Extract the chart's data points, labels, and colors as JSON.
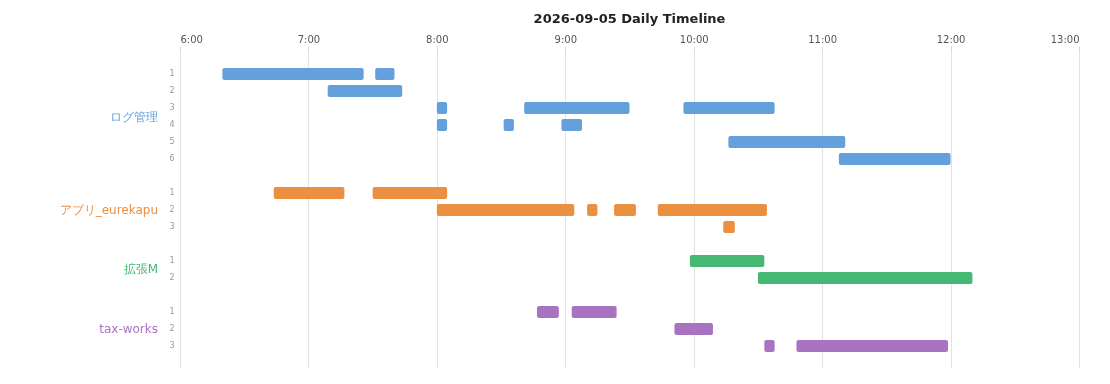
{
  "chart_data": {
    "type": "bar",
    "orientation": "horizontal",
    "title": "2026-09-05 Daily Timeline",
    "categories": [
      "1",
      "2",
      "3",
      "4",
      "5",
      "6",
      null,
      "1",
      "2",
      "3",
      null,
      "1",
      "2",
      null,
      "1",
      "2",
      "3"
    ],
    "xlim": [
      6,
      13
    ],
    "xticks": [
      {
        "value": 6,
        "label": "6:00"
      },
      {
        "value": 7,
        "label": "7:00"
      },
      {
        "value": 8,
        "label": "8:00"
      },
      {
        "value": 9,
        "label": "9:00"
      },
      {
        "value": 10,
        "label": "10:00"
      },
      {
        "value": 11,
        "label": "11:00"
      },
      {
        "value": 12,
        "label": "12:00"
      },
      {
        "value": 13,
        "label": "13:00"
      }
    ],
    "grid": "x",
    "series": [
      {
        "name": "ログ管理",
        "color": "#64a0dc",
        "base": [
          6.33,
          7.15,
          8.0,
          8.0,
          10.27,
          11.13,
          null,
          null,
          null,
          null,
          null,
          null,
          null,
          null,
          null,
          null,
          null
        ],
        "values": [
          1.1,
          0.58,
          0.08,
          0.08,
          0.91,
          0.87,
          null,
          null,
          null,
          null,
          null,
          null,
          null,
          null,
          null,
          null,
          null
        ]
      },
      {
        "color": "#64a0dc",
        "base": [
          7.52,
          null,
          8.68,
          8.52,
          null,
          null,
          null,
          null,
          null,
          null,
          null,
          null,
          null,
          null,
          null,
          null,
          null
        ],
        "values": [
          0.15,
          null,
          0.82,
          0.08,
          null,
          null,
          null,
          null,
          null,
          null,
          null,
          null,
          null,
          null,
          null,
          null,
          null
        ]
      },
      {
        "color": "#64a0dc",
        "base": [
          null,
          null,
          9.92,
          8.97,
          null,
          null,
          null,
          null,
          null,
          null,
          null,
          null,
          null,
          null,
          null,
          null,
          null
        ],
        "values": [
          null,
          null,
          0.71,
          0.16,
          null,
          null,
          null,
          null,
          null,
          null,
          null,
          null,
          null,
          null,
          null,
          null,
          null
        ]
      },
      {
        "name": "アプリ_eurekapu",
        "color": "#eb8f41",
        "base": [
          null,
          null,
          null,
          null,
          null,
          null,
          null,
          6.73,
          8.0,
          10.23,
          null,
          null,
          null,
          null,
          null,
          null,
          null
        ],
        "values": [
          null,
          null,
          null,
          null,
          null,
          null,
          null,
          0.55,
          1.07,
          0.09,
          null,
          null,
          null,
          null,
          null,
          null,
          null
        ]
      },
      {
        "color": "#eb8f41",
        "base": [
          null,
          null,
          null,
          null,
          null,
          null,
          null,
          7.5,
          9.17,
          null,
          null,
          null,
          null,
          null,
          null,
          null,
          null
        ],
        "values": [
          null,
          null,
          null,
          null,
          null,
          null,
          null,
          0.58,
          0.08,
          null,
          null,
          null,
          null,
          null,
          null,
          null,
          null
        ]
      },
      {
        "color": "#eb8f41",
        "base": [
          null,
          null,
          null,
          null,
          null,
          null,
          null,
          null,
          9.38,
          null,
          null,
          null,
          null,
          null,
          null,
          null,
          null
        ],
        "values": [
          null,
          null,
          null,
          null,
          null,
          null,
          null,
          null,
          0.17,
          null,
          null,
          null,
          null,
          null,
          null,
          null,
          null
        ]
      },
      {
        "color": "#eb8f41",
        "base": [
          null,
          null,
          null,
          null,
          null,
          null,
          null,
          null,
          9.72,
          null,
          null,
          null,
          null,
          null,
          null,
          null,
          null
        ],
        "values": [
          null,
          null,
          null,
          null,
          null,
          null,
          null,
          null,
          0.85,
          null,
          null,
          null,
          null,
          null,
          null,
          null,
          null
        ]
      },
      {
        "name": "拡張M",
        "color": "#45b874",
        "base": [
          null,
          null,
          null,
          null,
          null,
          null,
          null,
          null,
          null,
          null,
          null,
          9.97,
          10.5,
          null,
          null,
          null,
          null
        ],
        "values": [
          null,
          null,
          null,
          null,
          null,
          null,
          null,
          null,
          null,
          null,
          null,
          0.58,
          1.67,
          null,
          null,
          null,
          null
        ]
      },
      {
        "name": "tax-works",
        "color": "#a874c2",
        "base": [
          null,
          null,
          null,
          null,
          null,
          null,
          null,
          null,
          null,
          null,
          null,
          null,
          null,
          null,
          8.78,
          9.85,
          10.55
        ],
        "values": [
          null,
          null,
          null,
          null,
          null,
          null,
          null,
          null,
          null,
          null,
          null,
          null,
          null,
          null,
          0.17,
          0.3,
          0.08
        ]
      },
      {
        "color": "#a874c2",
        "base": [
          null,
          null,
          null,
          null,
          null,
          null,
          null,
          null,
          null,
          null,
          null,
          null,
          null,
          null,
          9.05,
          null,
          10.8
        ],
        "values": [
          null,
          null,
          null,
          null,
          null,
          null,
          null,
          null,
          null,
          null,
          null,
          null,
          null,
          null,
          0.35,
          null,
          1.18
        ]
      }
    ]
  }
}
